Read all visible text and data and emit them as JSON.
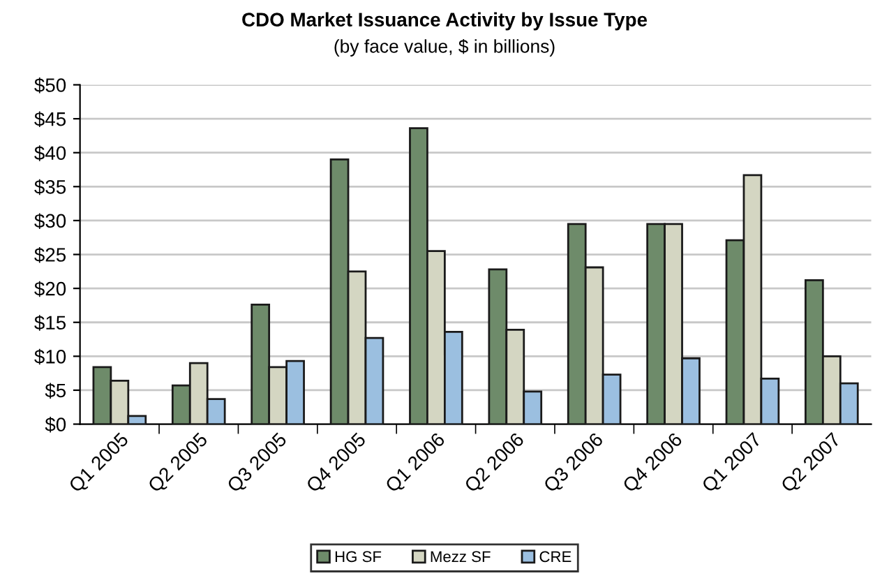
{
  "chart_data": {
    "type": "bar",
    "title": "CDO Market Issuance Activity by Issue Type",
    "subtitle": "(by face value, $ in billions)",
    "categories": [
      "Q1 2005",
      "Q2 2005",
      "Q3 2005",
      "Q4 2005",
      "Q1 2006",
      "Q2 2006",
      "Q3 2006",
      "Q4 2006",
      "Q1 2007",
      "Q2 2007"
    ],
    "series": [
      {
        "name": "HG SF",
        "color": "#6e8b6a",
        "values": [
          8.4,
          5.7,
          17.6,
          39.0,
          43.6,
          22.8,
          29.5,
          29.5,
          27.1,
          21.2
        ]
      },
      {
        "name": "Mezz SF",
        "color": "#d4d6c2",
        "values": [
          6.4,
          9.0,
          8.4,
          22.5,
          25.5,
          13.9,
          23.1,
          29.5,
          36.7,
          10.0
        ]
      },
      {
        "name": "CRE",
        "color": "#9bbfe0",
        "values": [
          1.2,
          3.7,
          9.3,
          12.7,
          13.6,
          4.8,
          7.3,
          9.7,
          6.7,
          6.0
        ]
      }
    ],
    "ylim": [
      0,
      50
    ],
    "yticks": [
      {
        "value": 0,
        "label": "$0"
      },
      {
        "value": 5,
        "label": "$5"
      },
      {
        "value": 10,
        "label": "$10"
      },
      {
        "value": 15,
        "label": "$15"
      },
      {
        "value": 20,
        "label": "$20"
      },
      {
        "value": 25,
        "label": "$25"
      },
      {
        "value": 30,
        "label": "$30"
      },
      {
        "value": 35,
        "label": "$35"
      },
      {
        "value": 40,
        "label": "$40"
      },
      {
        "value": 45,
        "label": "$45"
      },
      {
        "value": 50,
        "label": "$50"
      }
    ],
    "grid": "y",
    "legend": "bottom"
  }
}
